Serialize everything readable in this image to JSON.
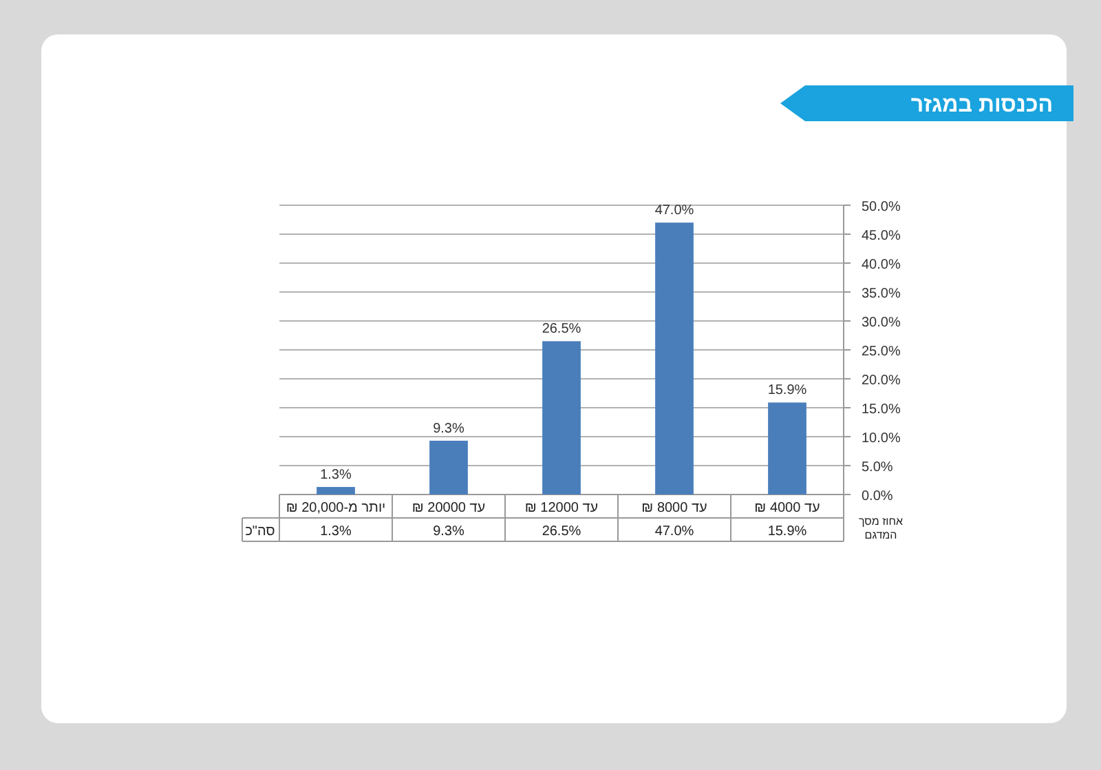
{
  "chart_data": {
    "type": "bar",
    "title": "הכנסות במגזר",
    "categories": [
      "יותר  מ-20,000 ₪",
      "עד 20000 ₪",
      "עד 12000 ₪",
      "עד 8000 ₪",
      "עד 4000 ₪"
    ],
    "series": [
      {
        "name": "סה\"כ",
        "color": "#4a7ebb",
        "values": [
          1.3,
          9.3,
          26.5,
          47.0,
          15.9
        ],
        "value_labels": [
          "1.3%",
          "9.3%",
          "26.5%",
          "47.0%",
          "15.9%"
        ]
      }
    ],
    "ylim": [
      0,
      50
    ],
    "yticks": [
      {
        "value": 0,
        "label": "0.0%"
      },
      {
        "value": 5,
        "label": "5.0%"
      },
      {
        "value": 10,
        "label": "10.0%"
      },
      {
        "value": 15,
        "label": "15.0%"
      },
      {
        "value": 20,
        "label": "20.0%"
      },
      {
        "value": 25,
        "label": "25.0%"
      },
      {
        "value": 30,
        "label": "30.0%"
      },
      {
        "value": 35,
        "label": "35.0%"
      },
      {
        "value": 40,
        "label": "40.0%"
      },
      {
        "value": 45,
        "label": "45.0%"
      },
      {
        "value": 50,
        "label": "50.0%"
      }
    ],
    "grid": "y",
    "annotations": [
      "אחוז מסך המדגם"
    ]
  }
}
